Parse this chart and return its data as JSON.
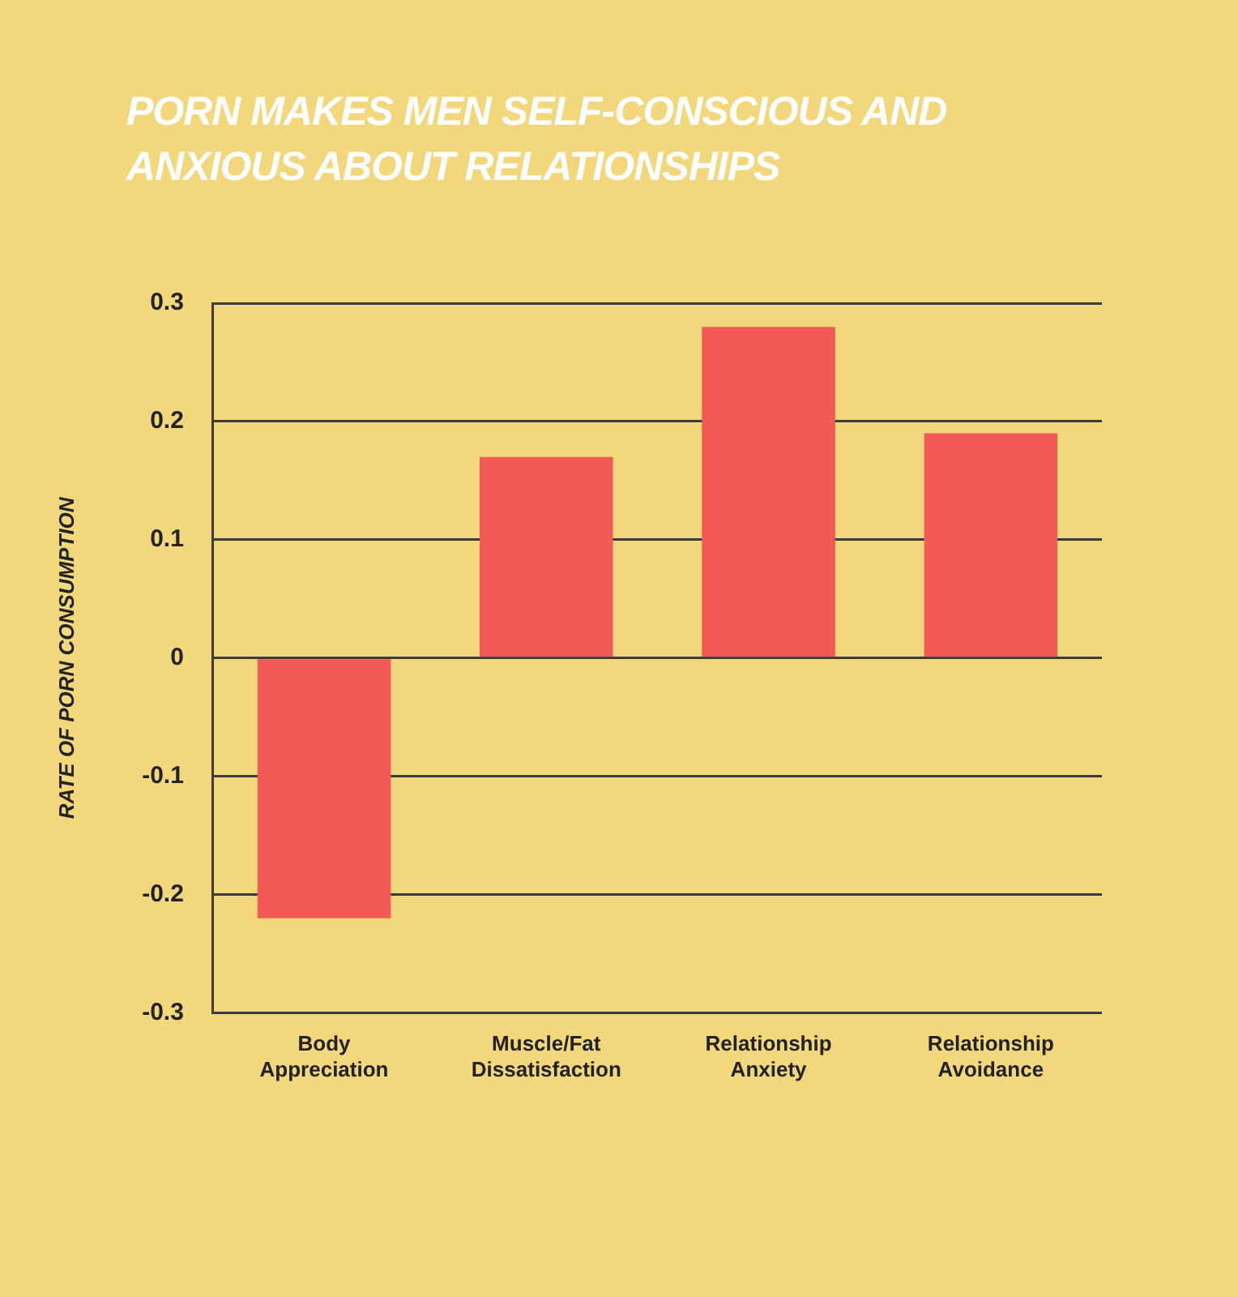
{
  "chart_data": {
    "type": "bar",
    "title": "PORN MAKES MEN SELF-CONSCIOUS AND ANXIOUS ABOUT RELATIONSHIPS",
    "ylabel": "RATE OF PORN CONSUMPTION",
    "categories": [
      "Body Appreciation",
      "Muscle/Fat Dissatisfaction",
      "Relationship Anxiety",
      "Relationship Avoidance"
    ],
    "values": [
      -0.22,
      0.17,
      0.28,
      0.19
    ],
    "color": "#f25a55",
    "ylim": [
      -0.3,
      0.3
    ],
    "yticks": [
      -0.3,
      -0.2,
      -0.1,
      0,
      0.1,
      0.2,
      0.3
    ],
    "grid": "y",
    "legend": false
  }
}
